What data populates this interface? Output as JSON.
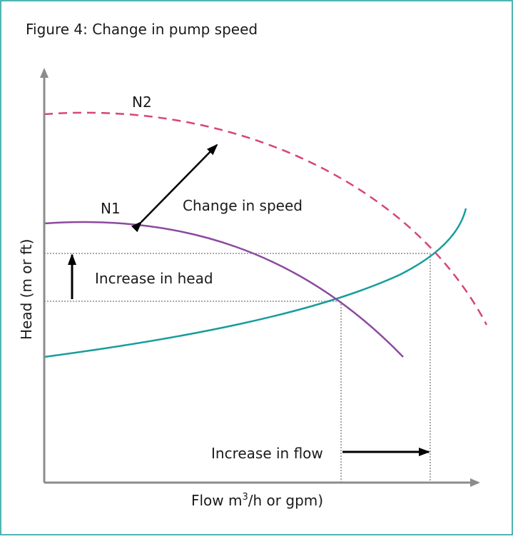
{
  "figure": {
    "title": "Figure 4: Change in pump speed",
    "ylabel": "Head (m or ft)",
    "xlabel_prefix": "Flow m",
    "xlabel_sup": "3",
    "xlabel_suffix": "/h or gpm)"
  },
  "curves": {
    "n1_label": "N1",
    "n2_label": "N2",
    "n1_color": "#8b4a9e",
    "n2_color": "#d6457a",
    "system_color": "#179c9c"
  },
  "annotations": {
    "change_in_speed": "Change in speed",
    "increase_in_head": "Increase in head",
    "increase_in_flow": "Increase in flow"
  },
  "colors": {
    "border": "#179c9c",
    "axis": "#8c8c8c",
    "guide": "#a8a8a8",
    "arrow": "#000000"
  }
}
